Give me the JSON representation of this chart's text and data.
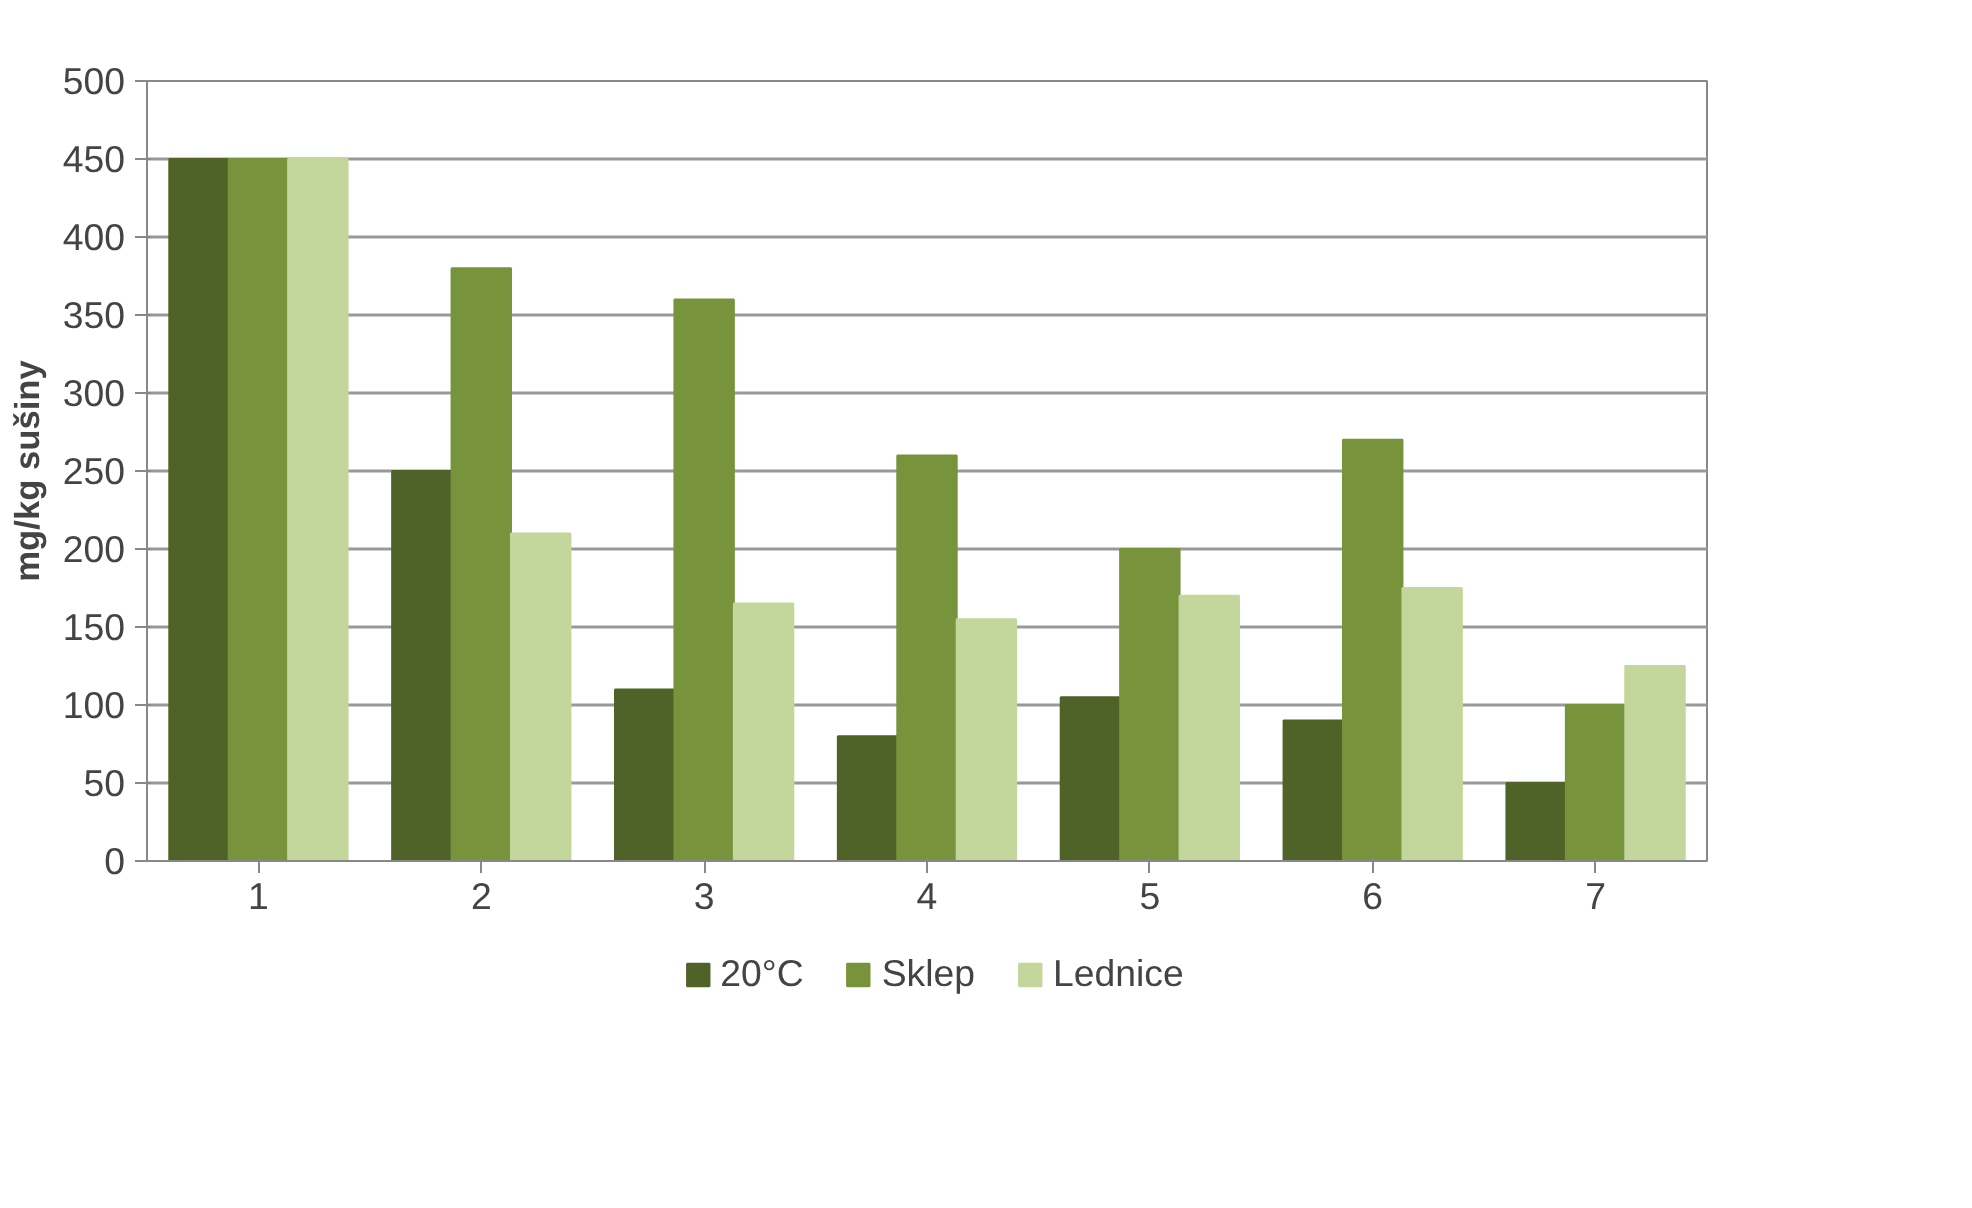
{
  "chart_data": {
    "type": "bar",
    "ylabel": "mg/kg sušiny",
    "categories": [
      "1",
      "2",
      "3",
      "4",
      "5",
      "6",
      "7"
    ],
    "series": [
      {
        "name": "20°C",
        "color": "#4f6228",
        "values": [
          450,
          250,
          110,
          80,
          105,
          90,
          50
        ]
      },
      {
        "name": "Sklep",
        "color": "#77933c",
        "values": [
          450,
          380,
          360,
          260,
          200,
          270,
          100
        ]
      },
      {
        "name": "Lednice",
        "color": "#c3d69b",
        "values": [
          450,
          210,
          165,
          155,
          170,
          175,
          125
        ]
      }
    ],
    "ylim": [
      0,
      500
    ],
    "yticks": [
      0,
      50,
      100,
      150,
      200,
      250,
      300,
      350,
      400,
      450,
      500
    ],
    "grid": "y",
    "legend": "bottom"
  }
}
